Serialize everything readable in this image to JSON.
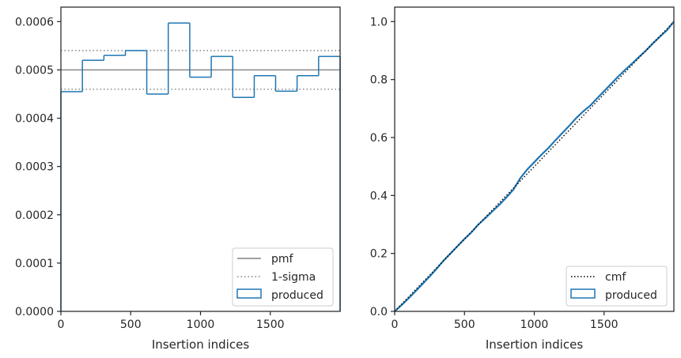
{
  "chart_data": [
    {
      "type": "step",
      "xlabel": "Insertion indices",
      "ylabel": "",
      "xlim": [
        0,
        2000
      ],
      "ylim": [
        0,
        0.00063
      ],
      "xticks": [
        0,
        500,
        1000,
        1500
      ],
      "xtick_labels": [
        "0",
        "500",
        "1000",
        "1500"
      ],
      "yticks": [
        0,
        0.0001,
        0.0002,
        0.0003,
        0.0004,
        0.0005,
        0.0006
      ],
      "ytick_labels": [
        "0.0000",
        "0.0001",
        "0.0002",
        "0.0003",
        "0.0004",
        "0.0005",
        "0.0006"
      ],
      "legend_position": "lower-right",
      "legend": [
        "pmf",
        "1-sigma",
        "produced"
      ],
      "pmf": 0.0005,
      "sigma_band": [
        0.00046,
        0.00054
      ],
      "bin_edges": [
        0,
        154,
        308,
        462,
        615,
        769,
        923,
        1077,
        1231,
        1385,
        1538,
        1692,
        1846,
        2000
      ],
      "produced": [
        0.000455,
        0.00052,
        0.00053,
        0.00054,
        0.00045,
        0.000597,
        0.000485,
        0.000528,
        0.000443,
        0.000488,
        0.000456,
        0.000488,
        0.000528
      ],
      "colors": {
        "produced": "#1f77b4",
        "pmf": "#808080",
        "sigma": "#808080"
      }
    },
    {
      "type": "line",
      "xlabel": "Insertion indices",
      "ylabel": "",
      "xlim": [
        0,
        2000
      ],
      "ylim": [
        0,
        1.05
      ],
      "xticks": [
        0,
        500,
        1000,
        1500
      ],
      "xtick_labels": [
        "0",
        "500",
        "1000",
        "1500"
      ],
      "yticks": [
        0,
        0.2,
        0.4,
        0.6,
        0.8,
        1.0
      ],
      "ytick_labels": [
        "0.0",
        "0.2",
        "0.4",
        "0.6",
        "0.8",
        "1.0"
      ],
      "legend_position": "lower-right",
      "legend": [
        "cmf",
        "produced"
      ],
      "cmf": {
        "x": [
          0,
          2000
        ],
        "y": [
          0,
          1.0
        ]
      },
      "produced": {
        "x": [
          0,
          50,
          100,
          150,
          200,
          250,
          300,
          350,
          400,
          450,
          500,
          550,
          600,
          650,
          700,
          750,
          800,
          850,
          900,
          950,
          1000,
          1050,
          1100,
          1150,
          1200,
          1250,
          1300,
          1350,
          1400,
          1450,
          1500,
          1550,
          1600,
          1650,
          1700,
          1750,
          1800,
          1850,
          1900,
          1950,
          2000
        ],
        "y": [
          0,
          0.022,
          0.045,
          0.07,
          0.095,
          0.12,
          0.147,
          0.175,
          0.2,
          0.225,
          0.25,
          0.273,
          0.3,
          0.322,
          0.345,
          0.368,
          0.393,
          0.42,
          0.46,
          0.49,
          0.515,
          0.54,
          0.563,
          0.59,
          0.615,
          0.64,
          0.667,
          0.69,
          0.71,
          0.735,
          0.76,
          0.785,
          0.81,
          0.833,
          0.855,
          0.878,
          0.9,
          0.925,
          0.948,
          0.97,
          1.0
        ]
      },
      "colors": {
        "produced": "#1f77b4",
        "cmf": "#000000"
      }
    }
  ]
}
